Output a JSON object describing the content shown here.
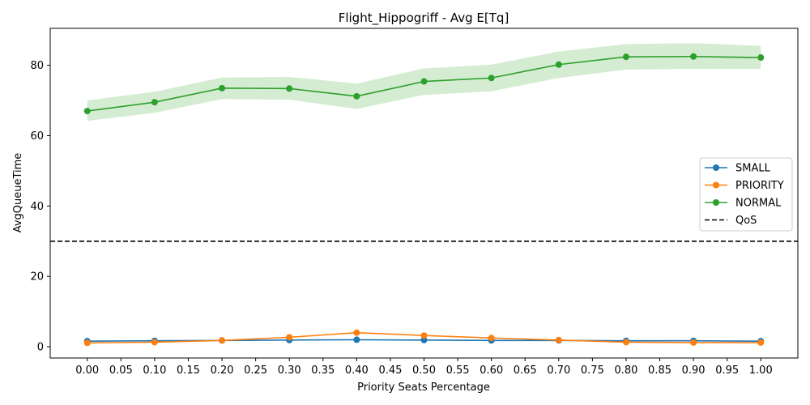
{
  "chart_data": {
    "type": "line",
    "title": "Flight_Hippogriff - Avg E[Tq]",
    "xlabel": "Priority Seats Percentage",
    "ylabel": "AvgQueueTime",
    "xlim": [
      -0.055,
      1.055
    ],
    "ylim": [
      -3.2,
      90.5
    ],
    "xticks": [
      "0.00",
      "0.05",
      "0.10",
      "0.15",
      "0.20",
      "0.25",
      "0.30",
      "0.35",
      "0.40",
      "0.45",
      "0.50",
      "0.55",
      "0.60",
      "0.65",
      "0.70",
      "0.75",
      "0.80",
      "0.85",
      "0.90",
      "0.95",
      "1.00"
    ],
    "yticks": [
      0,
      20,
      40,
      60,
      80
    ],
    "x": [
      0.0,
      0.1,
      0.2,
      0.3,
      0.4,
      0.5,
      0.6,
      0.7,
      0.8,
      0.9,
      1.0
    ],
    "series": [
      {
        "name": "SMALL",
        "color": "#1f77b4",
        "values": [
          1.6,
          1.7,
          1.8,
          1.9,
          2.0,
          1.9,
          1.8,
          1.8,
          1.7,
          1.7,
          1.6
        ]
      },
      {
        "name": "PRIORITY",
        "color": "#ff7f0e",
        "values": [
          1.1,
          1.3,
          1.8,
          2.7,
          4.0,
          3.2,
          2.5,
          1.9,
          1.3,
          1.2,
          1.2
        ]
      },
      {
        "name": "NORMAL",
        "color": "#2ca02c",
        "values": [
          67.0,
          69.5,
          73.5,
          73.4,
          71.2,
          75.4,
          76.4,
          80.2,
          82.4,
          82.5,
          82.2
        ],
        "band_lower": [
          64.2,
          66.5,
          70.4,
          70.2,
          67.6,
          71.6,
          72.6,
          76.4,
          78.8,
          79.0,
          79.0
        ],
        "band_upper": [
          70.0,
          72.5,
          76.5,
          76.7,
          74.8,
          79.1,
          80.2,
          83.9,
          86.0,
          86.3,
          85.5
        ],
        "band_color": "#d4ecd1"
      }
    ],
    "reference_lines": [
      {
        "name": "QoS",
        "y": 30,
        "color": "#000000",
        "style": "dashed"
      }
    ],
    "legend": [
      "SMALL",
      "PRIORITY",
      "NORMAL",
      "QoS"
    ],
    "legend_position": "right",
    "grid": false
  }
}
